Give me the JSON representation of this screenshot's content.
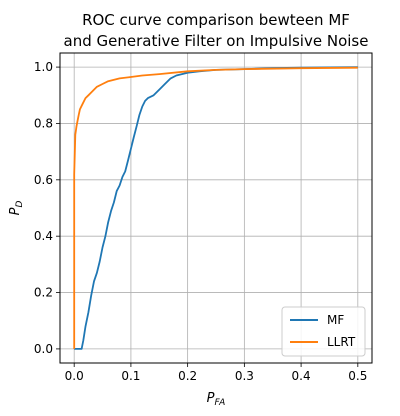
{
  "chart_data": {
    "type": "line",
    "title_line1": "ROC curve comparison bewteen MF",
    "title_line2": "and Generative Filter on Impulsive Noise",
    "xlabel_main": "P",
    "xlabel_sub": "FA",
    "ylabel_main": "P",
    "ylabel_sub": "D",
    "xlim": [
      -0.025,
      0.525
    ],
    "ylim": [
      -0.05,
      1.05
    ],
    "xticks": [
      0.0,
      0.1,
      0.2,
      0.3,
      0.4,
      0.5
    ],
    "xtick_labels": [
      "0.0",
      "0.1",
      "0.2",
      "0.3",
      "0.4",
      "0.5"
    ],
    "yticks": [
      0.0,
      0.2,
      0.4,
      0.6,
      0.8,
      1.0
    ],
    "ytick_labels": [
      "0.0",
      "0.2",
      "0.4",
      "0.6",
      "0.8",
      "1.0"
    ],
    "grid": true,
    "legend_position": "lower-right",
    "series": [
      {
        "name": "MF",
        "color": "#1f77b4",
        "x": [
          0.0,
          0.013,
          0.016,
          0.02,
          0.025,
          0.03,
          0.035,
          0.04,
          0.045,
          0.05,
          0.055,
          0.06,
          0.065,
          0.07,
          0.075,
          0.08,
          0.085,
          0.09,
          0.095,
          0.1,
          0.105,
          0.11,
          0.115,
          0.12,
          0.125,
          0.13,
          0.14,
          0.15,
          0.16,
          0.17,
          0.18,
          0.2,
          0.22,
          0.25,
          0.3,
          0.35,
          0.4,
          0.45,
          0.5
        ],
        "y": [
          0.0,
          0.0,
          0.03,
          0.08,
          0.13,
          0.19,
          0.24,
          0.27,
          0.31,
          0.36,
          0.4,
          0.45,
          0.49,
          0.52,
          0.56,
          0.58,
          0.61,
          0.63,
          0.67,
          0.71,
          0.75,
          0.79,
          0.83,
          0.86,
          0.88,
          0.89,
          0.9,
          0.92,
          0.94,
          0.96,
          0.97,
          0.98,
          0.985,
          0.99,
          0.993,
          0.996,
          0.998,
          0.999,
          1.0
        ]
      },
      {
        "name": "LLRT",
        "color": "#ff7f0e",
        "x": [
          0.0,
          0.0,
          0.002,
          0.004,
          0.006,
          0.008,
          0.01,
          0.015,
          0.02,
          0.025,
          0.03,
          0.04,
          0.05,
          0.06,
          0.08,
          0.1,
          0.12,
          0.15,
          0.2,
          0.25,
          0.3,
          0.4,
          0.5
        ],
        "y": [
          0.0,
          0.62,
          0.76,
          0.79,
          0.81,
          0.83,
          0.85,
          0.87,
          0.89,
          0.9,
          0.91,
          0.93,
          0.94,
          0.95,
          0.96,
          0.965,
          0.97,
          0.975,
          0.985,
          0.99,
          0.993,
          0.996,
          0.998
        ]
      }
    ]
  }
}
